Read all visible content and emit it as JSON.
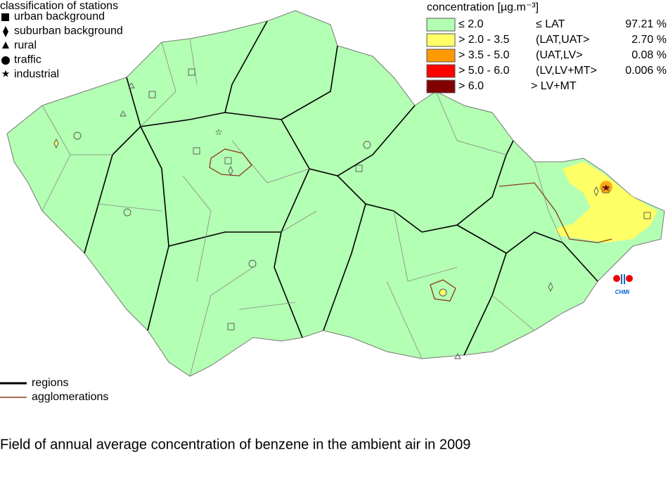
{
  "station_legend": {
    "title": "classification of stations",
    "items": [
      "urban background",
      "suburban background",
      "rural",
      "traffic",
      "industrial"
    ]
  },
  "concentration_legend": {
    "title": "concentration [µg.m⁻³]",
    "rows": [
      {
        "range": "≤ 2.0",
        "limit": "≤ LAT",
        "share": "97.21 %",
        "color": "#b3ffb3"
      },
      {
        "range": "> 2.0 - 3.5",
        "limit": "(LAT,UAT>",
        "share": "2.70 %",
        "color": "#ffff66"
      },
      {
        "range": "> 3.5 - 5.0",
        "limit": "(UAT,LV>",
        "share": "0.08 %",
        "color": "#ff9900"
      },
      {
        "range": "> 5.0 - 6.0",
        "limit": "(LV,LV+MT>",
        "share": "0.006 %",
        "color": "#ff0000"
      },
      {
        "range": "> 6.0",
        "limit": "> LV+MT",
        "color": "#800000"
      }
    ]
  },
  "line_legend": {
    "items": [
      "regions",
      "agglomerations"
    ]
  },
  "logo": "CHMI",
  "caption": "Field of annual average concentration of benzene in the ambient air in 2009"
}
